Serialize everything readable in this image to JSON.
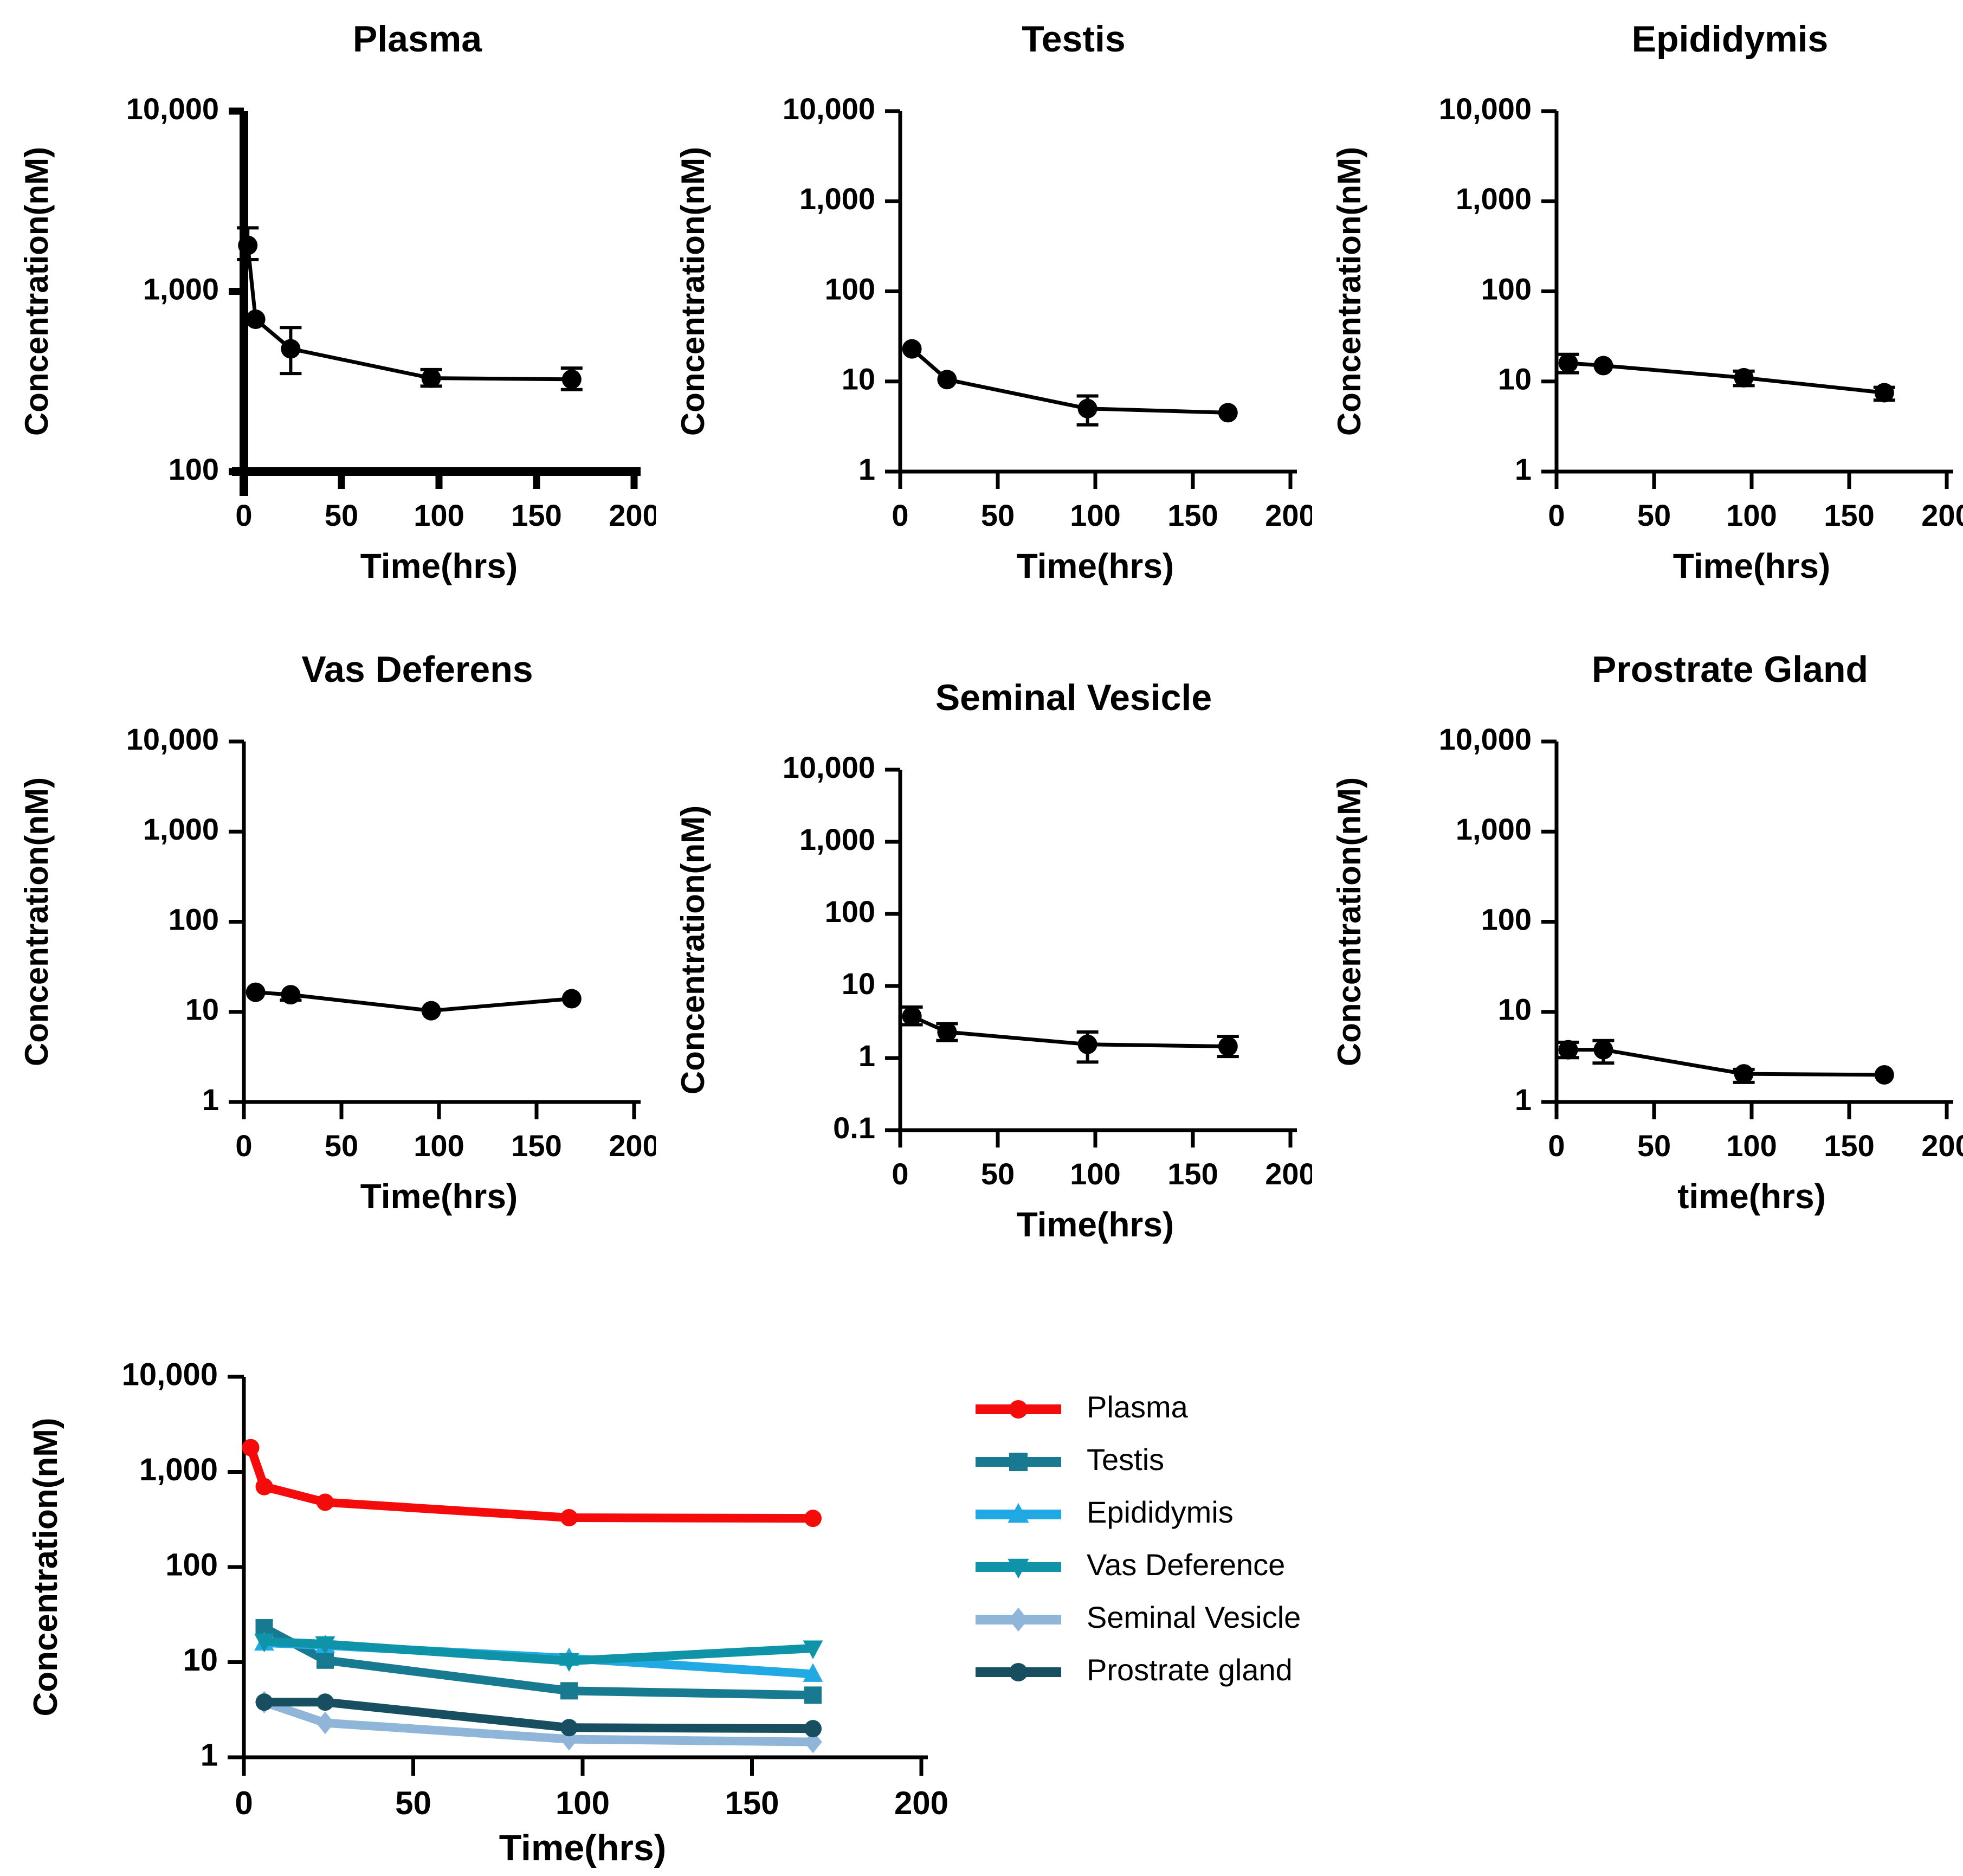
{
  "figure": {
    "background": "#FFFFFF",
    "axis_color": "#000000",
    "text_color": "#000000"
  },
  "chart_data": [
    {
      "id": "plasma",
      "type": "line",
      "title": "Plasma",
      "xlabel": "Time(hrs)",
      "ylabel": "Concentration(nM)",
      "xlim": [
        0,
        200
      ],
      "xticks": [
        0,
        50,
        100,
        150,
        200
      ],
      "xtick_labels": [
        "0",
        "50",
        "100",
        "150",
        "200"
      ],
      "ylog": true,
      "ylim": [
        100,
        10000
      ],
      "ytick_labels": [
        "100",
        "1,000",
        "10,000"
      ],
      "grid": false,
      "thick_axis": true,
      "series": [
        {
          "name": "Plasma",
          "color": "#000000",
          "marker": "circle",
          "x": [
            2,
            6,
            24,
            96,
            168
          ],
          "y": [
            1800,
            700,
            480,
            330,
            325
          ],
          "err_lo": [
            1500,
            null,
            350,
            298,
            285
          ],
          "err_hi": [
            2250,
            null,
            630,
            368,
            375
          ]
        }
      ]
    },
    {
      "id": "testis",
      "type": "line",
      "title": "Testis",
      "xlabel": "Time(hrs)",
      "ylabel": "Concentration(nM)",
      "xlim": [
        0,
        200
      ],
      "xticks": [
        0,
        50,
        100,
        150,
        200
      ],
      "xtick_labels": [
        "0",
        "50",
        "100",
        "150",
        "200"
      ],
      "ylog": true,
      "ylim": [
        1,
        10000
      ],
      "ytick_labels": [
        "1",
        "10",
        "100",
        "1,000",
        "10,000"
      ],
      "grid": false,
      "thick_axis": false,
      "series": [
        {
          "name": "Testis",
          "color": "#000000",
          "marker": "circle",
          "x": [
            6,
            24,
            96,
            168
          ],
          "y": [
            23,
            10.5,
            5,
            4.5
          ],
          "err_lo": [
            null,
            null,
            3.3,
            null
          ],
          "err_hi": [
            null,
            null,
            6.9,
            null
          ]
        }
      ]
    },
    {
      "id": "epididymis",
      "type": "line",
      "title": "Epididymis",
      "xlabel": "Time(hrs)",
      "ylabel": "Concentration(nM)",
      "xlim": [
        0,
        200
      ],
      "xticks": [
        0,
        50,
        100,
        150,
        200
      ],
      "xtick_labels": [
        "0",
        "50",
        "100",
        "150",
        "200"
      ],
      "ylog": true,
      "ylim": [
        1,
        10000
      ],
      "ytick_labels": [
        "1",
        "10",
        "100",
        "1,000",
        "10,000"
      ],
      "grid": false,
      "thick_axis": false,
      "series": [
        {
          "name": "Epididymis",
          "color": "#000000",
          "marker": "circle",
          "x": [
            6,
            24,
            96,
            168
          ],
          "y": [
            16,
            15,
            11,
            7.5
          ],
          "err_lo": [
            12.5,
            null,
            9,
            6.2
          ],
          "err_hi": [
            20,
            null,
            13,
            8.6
          ]
        }
      ]
    },
    {
      "id": "vas-deferens",
      "type": "line",
      "title": "Vas Deferens",
      "xlabel": "Time(hrs)",
      "ylabel": "Concentration(nM)",
      "xlim": [
        0,
        200
      ],
      "xticks": [
        0,
        50,
        100,
        150,
        200
      ],
      "xtick_labels": [
        "0",
        "50",
        "100",
        "150",
        "200"
      ],
      "ylog": true,
      "ylim": [
        1,
        10000
      ],
      "ytick_labels": [
        "1",
        "10",
        "100",
        "1,000",
        "10,000"
      ],
      "grid": false,
      "thick_axis": false,
      "series": [
        {
          "name": "Vas Deferens",
          "color": "#000000",
          "marker": "circle",
          "x": [
            6,
            24,
            96,
            168
          ],
          "y": [
            16.5,
            15.5,
            10.3,
            14
          ],
          "err_lo": [
            null,
            13.5,
            null,
            null
          ],
          "err_hi": [
            null,
            null,
            null,
            null
          ]
        }
      ]
    },
    {
      "id": "seminal-vesicle",
      "type": "line",
      "title": "Seminal Vesicle",
      "xlabel": "Time(hrs)",
      "ylabel": "Concentration(nM)",
      "xlim": [
        0,
        200
      ],
      "xticks": [
        0,
        50,
        100,
        150,
        200
      ],
      "xtick_labels": [
        "0",
        "50",
        "100",
        "150",
        "200"
      ],
      "ylog": true,
      "ylim": [
        0.1,
        10000
      ],
      "ytick_labels": [
        "0.1",
        "1",
        "10",
        "100",
        "1,000",
        "10,000"
      ],
      "grid": false,
      "thick_axis": false,
      "series": [
        {
          "name": "Seminal Vesicle",
          "color": "#000000",
          "marker": "circle",
          "x": [
            6,
            24,
            96,
            168
          ],
          "y": [
            3.8,
            2.3,
            1.55,
            1.45
          ],
          "err_lo": [
            2.9,
            1.75,
            0.88,
            1.05
          ],
          "err_hi": [
            5.1,
            3.0,
            2.3,
            2.0
          ]
        }
      ]
    },
    {
      "id": "prostrate-gland",
      "type": "line",
      "title": "Prostrate Gland",
      "xlabel": "time(hrs)",
      "ylabel": "Concentration(nM)",
      "xlim": [
        0,
        200
      ],
      "xticks": [
        0,
        50,
        100,
        150,
        200
      ],
      "xtick_labels": [
        "0",
        "50",
        "100",
        "150",
        "200"
      ],
      "ylog": true,
      "ylim": [
        1,
        10000
      ],
      "ytick_labels": [
        "1",
        "10",
        "100",
        "1,000",
        "10,000"
      ],
      "grid": false,
      "thick_axis": false,
      "series": [
        {
          "name": "Prostrate Gland",
          "color": "#000000",
          "marker": "circle",
          "x": [
            6,
            24,
            96,
            168
          ],
          "y": [
            3.8,
            3.8,
            2.05,
            2.0
          ],
          "err_lo": [
            3.1,
            2.7,
            1.65,
            null
          ],
          "err_hi": [
            4.6,
            4.8,
            2.3,
            null
          ]
        }
      ]
    },
    {
      "id": "combined",
      "type": "line",
      "title": "",
      "xlabel": "Time(hrs)",
      "ylabel": "Concentration(nM)",
      "xlim": [
        0,
        200
      ],
      "xticks": [
        0,
        50,
        100,
        150,
        200
      ],
      "xtick_labels": [
        "0",
        "50",
        "100",
        "150",
        "200"
      ],
      "ylog": true,
      "ylim": [
        1,
        10000
      ],
      "ytick_labels": [
        "1",
        "10",
        "100",
        "1,000",
        "10,000"
      ],
      "grid": false,
      "thick_axis": false,
      "legend": true,
      "legend_position": "right",
      "series": [
        {
          "name": "Plasma",
          "color": "#F40B0B",
          "marker": "circle",
          "x": [
            2,
            6,
            24,
            96,
            168
          ],
          "y": [
            1800,
            700,
            480,
            330,
            325
          ]
        },
        {
          "name": "Testis",
          "color": "#177A91",
          "marker": "square",
          "x": [
            6,
            24,
            96,
            168
          ],
          "y": [
            23,
            10.5,
            5,
            4.5
          ]
        },
        {
          "name": "Epididymis",
          "color": "#21A9E3",
          "marker": "triangle-up",
          "x": [
            6,
            24,
            96,
            168
          ],
          "y": [
            16,
            15,
            11,
            7.5
          ]
        },
        {
          "name": "Vas Deference",
          "color": "#0E93A8",
          "marker": "triangle-down",
          "x": [
            6,
            24,
            96,
            168
          ],
          "y": [
            16.5,
            15.5,
            10.3,
            14
          ]
        },
        {
          "name": "Seminal Vesicle",
          "color": "#8FB6D9",
          "marker": "diamond",
          "x": [
            6,
            24,
            96,
            168
          ],
          "y": [
            3.8,
            2.3,
            1.55,
            1.45
          ]
        },
        {
          "name": "Prostrate gland",
          "color": "#174F60",
          "marker": "circle",
          "x": [
            6,
            24,
            96,
            168
          ],
          "y": [
            3.8,
            3.8,
            2.05,
            2.0
          ]
        }
      ]
    }
  ]
}
